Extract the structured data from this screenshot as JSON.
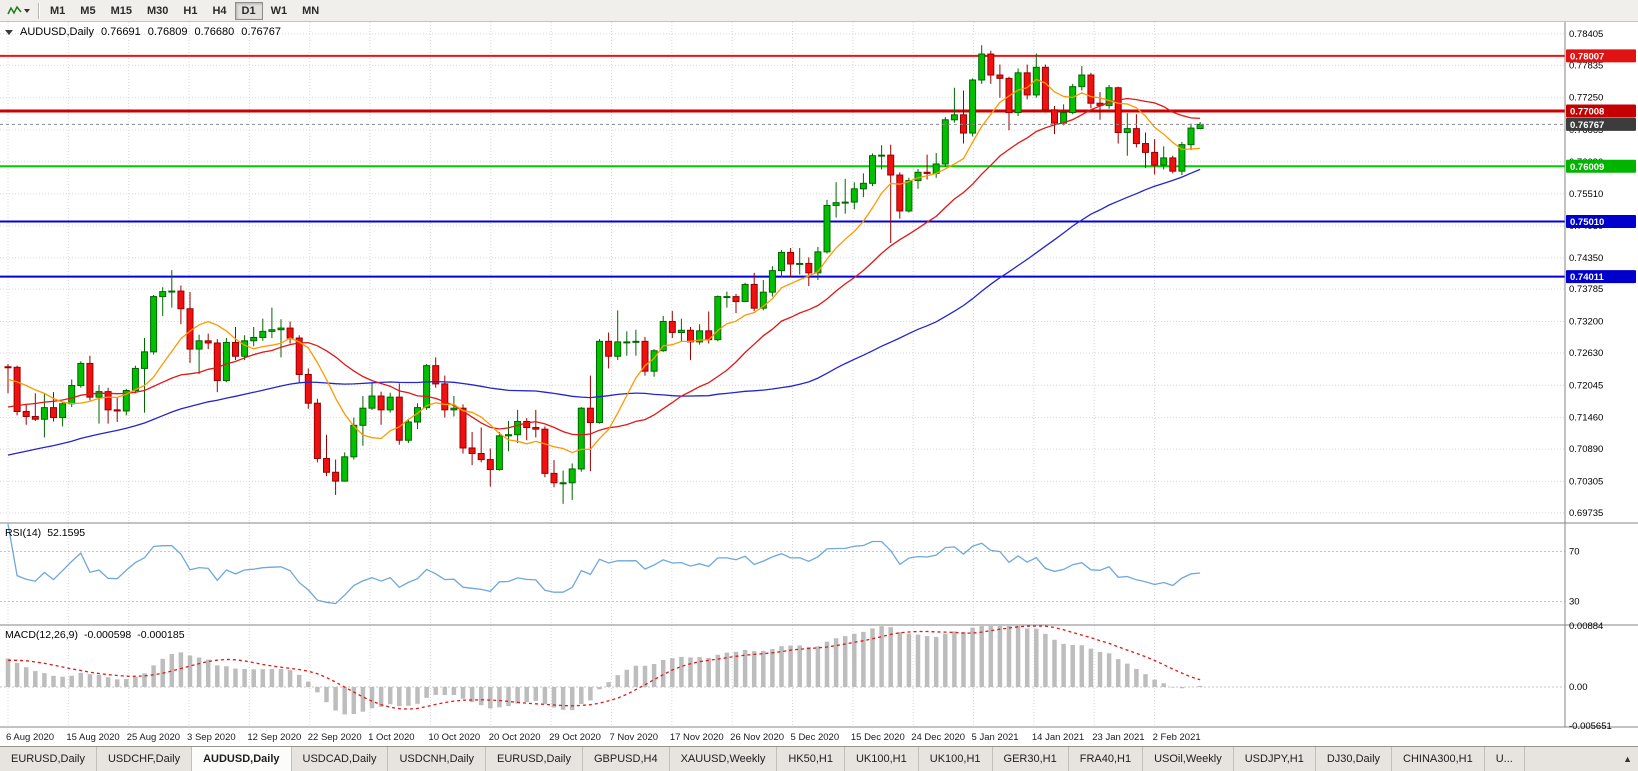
{
  "toolbar": {
    "timeframes": [
      "M1",
      "M5",
      "M15",
      "M30",
      "H1",
      "H4",
      "D1",
      "W1",
      "MN"
    ],
    "active_timeframe": "D1"
  },
  "chart": {
    "title": "AUDUSD,Daily",
    "open": "0.76691",
    "high": "0.76809",
    "low": "0.76680",
    "close": "0.76767"
  },
  "rsi": {
    "title": "RSI(14)",
    "value": "52.1595",
    "levels": [
      70,
      30
    ],
    "level_labels": [
      "70",
      "30"
    ]
  },
  "macd": {
    "title": "MACD(12,26,9)",
    "value": "-0.000598",
    "signal_value": "-0.000185",
    "axis_labels": [
      "0.00884",
      "0.00",
      "-0.005651"
    ],
    "axis_values": [
      0.00884,
      0.0,
      -0.005651
    ]
  },
  "price_axis": {
    "labels": [
      "0.78405",
      "0.77835",
      "0.77250",
      "0.76665",
      "0.76090",
      "0.75510",
      "0.74930",
      "0.74350",
      "0.73785",
      "0.73200",
      "0.72630",
      "0.72045",
      "0.71460",
      "0.70890",
      "0.70305",
      "0.69735"
    ],
    "badges": [
      {
        "label": "0.78007",
        "price": 0.78007,
        "color": "#e01212"
      },
      {
        "label": "0.77008",
        "price": 0.77008,
        "color": "#c40000"
      },
      {
        "label": "0.76767",
        "price": 0.76767,
        "color": "#3c3c3c"
      },
      {
        "label": "0.76009",
        "price": 0.76009,
        "color": "#00b400"
      },
      {
        "label": "0.75010",
        "price": 0.7501,
        "color": "#0000cc"
      },
      {
        "label": "0.74011",
        "price": 0.74011,
        "color": "#0000cc"
      }
    ]
  },
  "colors": {
    "up": "#00c000",
    "up_border": "#006600",
    "down": "#f01010",
    "down_border": "#990000",
    "ma_fast": "#ff9900",
    "ma_mid": "#e01818",
    "ma_slow": "#2525cc",
    "rsi": "#6fa8dc",
    "macd_hist": "#bdbdbd",
    "macd_signal": "#e01818",
    "grid": "#d8d8d8",
    "current_price_line": "#8a8a8a",
    "separator": "#848484"
  },
  "chart_data": {
    "type": "candlestick",
    "symbol": "AUDUSD",
    "period": "Daily",
    "x_labels": [
      "6 Aug 2020",
      "15 Aug 2020",
      "25 Aug 2020",
      "3 Sep 2020",
      "12 Sep 2020",
      "22 Sep 2020",
      "1 Oct 2020",
      "10 Oct 2020",
      "20 Oct 2020",
      "29 Oct 2020",
      "7 Nov 2020",
      "17 Nov 2020",
      "26 Nov 2020",
      "5 Dec 2020",
      "15 Dec 2020",
      "24 Dec 2020",
      "5 Jan 2021",
      "14 Jan 2021",
      "23 Jan 2021",
      "2 Feb 2021"
    ],
    "y_range": [
      0.6957,
      0.7862
    ],
    "hlines": [
      {
        "price": 0.78007,
        "color": "#f01212",
        "width": 2
      },
      {
        "price": 0.77008,
        "color": "#cc0000",
        "width": 3
      },
      {
        "price": 0.76009,
        "color": "#00cc00",
        "width": 2
      },
      {
        "price": 0.7501,
        "color": "#0000dd",
        "width": 2
      },
      {
        "price": 0.74011,
        "color": "#0000dd",
        "width": 2
      }
    ],
    "current_price": 0.76767,
    "moving_average_periods": {
      "fast": 8,
      "mid": 21,
      "slow": 55
    },
    "ohlc": [
      [
        0.7238,
        0.7243,
        0.719,
        0.7237
      ],
      [
        0.7237,
        0.724,
        0.715,
        0.7157
      ],
      [
        0.7157,
        0.717,
        0.7133,
        0.7148
      ],
      [
        0.7148,
        0.719,
        0.714,
        0.7143
      ],
      [
        0.7143,
        0.719,
        0.711,
        0.7164
      ],
      [
        0.7164,
        0.7192,
        0.7139,
        0.7146
      ],
      [
        0.7146,
        0.7175,
        0.713,
        0.7171
      ],
      [
        0.7171,
        0.7215,
        0.7165,
        0.7204
      ],
      [
        0.7204,
        0.7248,
        0.72,
        0.7244
      ],
      [
        0.7244,
        0.7258,
        0.7177,
        0.7183
      ],
      [
        0.7183,
        0.7205,
        0.7135,
        0.7193
      ],
      [
        0.7193,
        0.72,
        0.7135,
        0.716
      ],
      [
        0.716,
        0.7183,
        0.7138,
        0.7158
      ],
      [
        0.7158,
        0.7198,
        0.715,
        0.7195
      ],
      [
        0.7195,
        0.724,
        0.719,
        0.7235
      ],
      [
        0.7235,
        0.729,
        0.7155,
        0.7265
      ],
      [
        0.7265,
        0.7368,
        0.726,
        0.7365
      ],
      [
        0.7365,
        0.7382,
        0.733,
        0.7374
      ],
      [
        0.7374,
        0.7413,
        0.7345,
        0.7375
      ],
      [
        0.7375,
        0.7385,
        0.7315,
        0.7343
      ],
      [
        0.7343,
        0.7373,
        0.7245,
        0.727
      ],
      [
        0.727,
        0.7296,
        0.7225,
        0.7285
      ],
      [
        0.7285,
        0.7298,
        0.727,
        0.7281
      ],
      [
        0.7281,
        0.7288,
        0.7192,
        0.7213
      ],
      [
        0.7213,
        0.729,
        0.721,
        0.7282
      ],
      [
        0.7282,
        0.731,
        0.725,
        0.7257
      ],
      [
        0.7257,
        0.7295,
        0.725,
        0.7285
      ],
      [
        0.7285,
        0.731,
        0.7275,
        0.7291
      ],
      [
        0.7291,
        0.7325,
        0.7285,
        0.7302
      ],
      [
        0.7302,
        0.7345,
        0.729,
        0.7305
      ],
      [
        0.7305,
        0.7324,
        0.7255,
        0.7308
      ],
      [
        0.7308,
        0.732,
        0.728,
        0.729
      ],
      [
        0.729,
        0.7295,
        0.721,
        0.7224
      ],
      [
        0.7224,
        0.7235,
        0.7162,
        0.7172
      ],
      [
        0.7172,
        0.718,
        0.7065,
        0.7072
      ],
      [
        0.7072,
        0.7115,
        0.704,
        0.7047
      ],
      [
        0.7047,
        0.707,
        0.7006,
        0.7031
      ],
      [
        0.7031,
        0.7083,
        0.703,
        0.7075
      ],
      [
        0.7075,
        0.7146,
        0.707,
        0.7132
      ],
      [
        0.7132,
        0.7185,
        0.7095,
        0.7163
      ],
      [
        0.7163,
        0.7209,
        0.716,
        0.7185
      ],
      [
        0.7185,
        0.7193,
        0.7133,
        0.716
      ],
      [
        0.716,
        0.7191,
        0.7155,
        0.7183
      ],
      [
        0.7183,
        0.7208,
        0.7097,
        0.7105
      ],
      [
        0.7105,
        0.7143,
        0.71,
        0.7138
      ],
      [
        0.7138,
        0.7172,
        0.7125,
        0.7164
      ],
      [
        0.7164,
        0.7243,
        0.716,
        0.724
      ],
      [
        0.724,
        0.7255,
        0.72,
        0.7207
      ],
      [
        0.7207,
        0.7222,
        0.7146,
        0.716
      ],
      [
        0.716,
        0.7185,
        0.7148,
        0.7163
      ],
      [
        0.7163,
        0.717,
        0.7081,
        0.7091
      ],
      [
        0.7091,
        0.712,
        0.706,
        0.7081
      ],
      [
        0.7081,
        0.7128,
        0.7065,
        0.707
      ],
      [
        0.707,
        0.709,
        0.7021,
        0.7052
      ],
      [
        0.7052,
        0.712,
        0.705,
        0.7113
      ],
      [
        0.7113,
        0.714,
        0.7085,
        0.7115
      ],
      [
        0.7115,
        0.716,
        0.71,
        0.7139
      ],
      [
        0.7139,
        0.7145,
        0.7105,
        0.7128
      ],
      [
        0.7128,
        0.716,
        0.711,
        0.7125
      ],
      [
        0.7125,
        0.713,
        0.7038,
        0.7045
      ],
      [
        0.7045,
        0.7069,
        0.702,
        0.7028
      ],
      [
        0.7028,
        0.705,
        0.699,
        0.7028
      ],
      [
        0.7028,
        0.7063,
        0.6997,
        0.7053
      ],
      [
        0.7053,
        0.7165,
        0.7048,
        0.7163
      ],
      [
        0.7163,
        0.7222,
        0.7049,
        0.7137
      ],
      [
        0.7137,
        0.7288,
        0.7135,
        0.7284
      ],
      [
        0.7284,
        0.73,
        0.7235,
        0.7257
      ],
      [
        0.7257,
        0.734,
        0.725,
        0.7283
      ],
      [
        0.7283,
        0.7302,
        0.7258,
        0.7283
      ],
      [
        0.7283,
        0.7305,
        0.7258,
        0.7284
      ],
      [
        0.7284,
        0.7292,
        0.7222,
        0.723
      ],
      [
        0.723,
        0.727,
        0.722,
        0.7267
      ],
      [
        0.7267,
        0.733,
        0.7265,
        0.732
      ],
      [
        0.732,
        0.7339,
        0.729,
        0.73
      ],
      [
        0.73,
        0.7325,
        0.7283,
        0.7304
      ],
      [
        0.7304,
        0.731,
        0.725,
        0.7283
      ],
      [
        0.7283,
        0.7315,
        0.7278,
        0.7303
      ],
      [
        0.7303,
        0.7338,
        0.728,
        0.7287
      ],
      [
        0.7287,
        0.7367,
        0.7284,
        0.7365
      ],
      [
        0.7365,
        0.7374,
        0.7345,
        0.7365
      ],
      [
        0.7365,
        0.737,
        0.7335,
        0.7356
      ],
      [
        0.7356,
        0.739,
        0.7355,
        0.7387
      ],
      [
        0.7387,
        0.7408,
        0.7339,
        0.7344
      ],
      [
        0.7344,
        0.7395,
        0.734,
        0.7373
      ],
      [
        0.7373,
        0.742,
        0.7365,
        0.7412
      ],
      [
        0.7412,
        0.7449,
        0.74,
        0.7445
      ],
      [
        0.7445,
        0.7453,
        0.74,
        0.7424
      ],
      [
        0.7424,
        0.7453,
        0.7405,
        0.7425
      ],
      [
        0.7425,
        0.7436,
        0.7384,
        0.7408
      ],
      [
        0.7408,
        0.7455,
        0.7395,
        0.7446
      ],
      [
        0.7446,
        0.754,
        0.7443,
        0.753
      ],
      [
        0.753,
        0.7572,
        0.7508,
        0.7535
      ],
      [
        0.7535,
        0.7578,
        0.7515,
        0.7536
      ],
      [
        0.7536,
        0.7572,
        0.7523,
        0.756
      ],
      [
        0.756,
        0.7588,
        0.7545,
        0.757
      ],
      [
        0.757,
        0.7624,
        0.7565,
        0.762
      ],
      [
        0.762,
        0.7639,
        0.7595,
        0.7621
      ],
      [
        0.7621,
        0.764,
        0.7462,
        0.7585
      ],
      [
        0.7585,
        0.759,
        0.7506,
        0.752
      ],
      [
        0.752,
        0.758,
        0.7517,
        0.7575
      ],
      [
        0.7575,
        0.7596,
        0.756,
        0.759
      ],
      [
        0.759,
        0.7622,
        0.7577,
        0.7588
      ],
      [
        0.7588,
        0.7625,
        0.758,
        0.7605
      ],
      [
        0.7605,
        0.769,
        0.76,
        0.7685
      ],
      [
        0.7685,
        0.7743,
        0.768,
        0.7694
      ],
      [
        0.7694,
        0.7738,
        0.7642,
        0.7661
      ],
      [
        0.7661,
        0.776,
        0.7655,
        0.7757
      ],
      [
        0.7757,
        0.782,
        0.775,
        0.7804
      ],
      [
        0.7804,
        0.781,
        0.775,
        0.7766
      ],
      [
        0.7766,
        0.7785,
        0.7725,
        0.776
      ],
      [
        0.776,
        0.7763,
        0.7666,
        0.7698
      ],
      [
        0.7698,
        0.7778,
        0.7692,
        0.777
      ],
      [
        0.777,
        0.7785,
        0.7722,
        0.773
      ],
      [
        0.773,
        0.7805,
        0.7725,
        0.778
      ],
      [
        0.778,
        0.7785,
        0.7698,
        0.7703
      ],
      [
        0.7703,
        0.771,
        0.7659,
        0.7679
      ],
      [
        0.7679,
        0.7713,
        0.7675,
        0.7698
      ],
      [
        0.7698,
        0.775,
        0.7695,
        0.7745
      ],
      [
        0.7745,
        0.7782,
        0.7738,
        0.7766
      ],
      [
        0.7766,
        0.777,
        0.7706,
        0.7715
      ],
      [
        0.7715,
        0.7735,
        0.7685,
        0.7711
      ],
      [
        0.7711,
        0.7748,
        0.7705,
        0.7743
      ],
      [
        0.7743,
        0.7745,
        0.7642,
        0.7662
      ],
      [
        0.7662,
        0.7697,
        0.762,
        0.7669
      ],
      [
        0.7669,
        0.7695,
        0.7635,
        0.7642
      ],
      [
        0.7642,
        0.7662,
        0.7598,
        0.7626
      ],
      [
        0.7626,
        0.765,
        0.7586,
        0.7603
      ],
      [
        0.7603,
        0.7637,
        0.7595,
        0.7616
      ],
      [
        0.7616,
        0.762,
        0.7588,
        0.7592
      ],
      [
        0.7592,
        0.7645,
        0.7585,
        0.764
      ],
      [
        0.764,
        0.7678,
        0.763,
        0.767
      ],
      [
        0.76691,
        0.76809,
        0.7668,
        0.76767
      ]
    ]
  },
  "tabs": {
    "items": [
      "EURUSD,Daily",
      "USDCHF,Daily",
      "AUDUSD,Daily",
      "USDCAD,Daily",
      "USDCNH,Daily",
      "EURUSD,Daily",
      "GBPUSD,H4",
      "XAUUSD,Weekly",
      "HK50,H1",
      "UK100,H1",
      "UK100,H1",
      "GER30,H1",
      "FRA40,H1",
      "USOil,Weekly",
      "USDJPY,H1",
      "DJ30,Daily",
      "CHINA300,H1",
      "U..."
    ],
    "active_index": 2,
    "arrow": "▲"
  }
}
